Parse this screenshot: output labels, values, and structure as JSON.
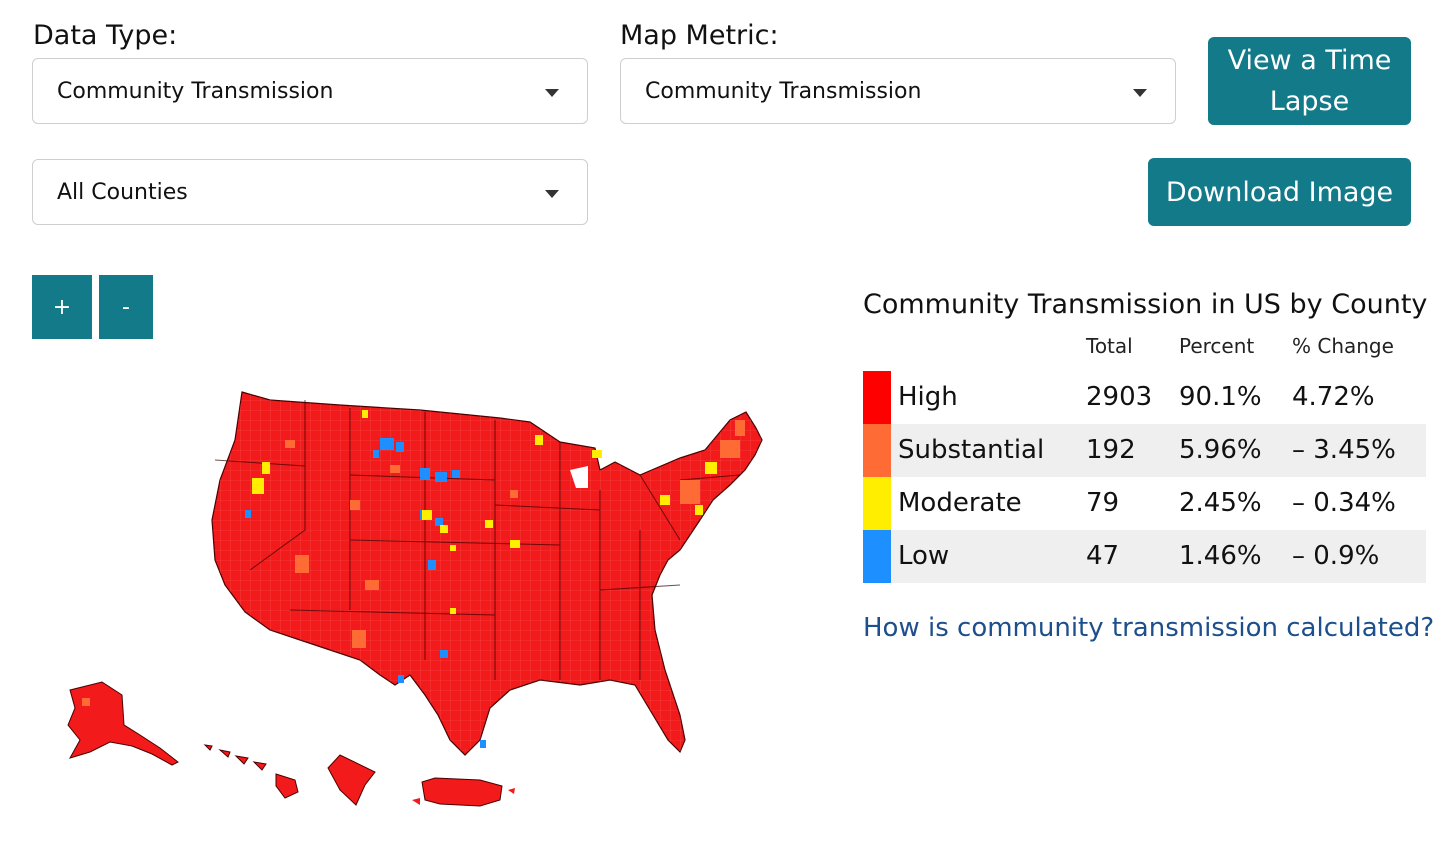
{
  "controls": {
    "data_type_label": "Data Type:",
    "data_type_value": "Community Transmission",
    "map_metric_label": "Map Metric:",
    "map_metric_value": "Community Transmission",
    "county_filter_value": "All Counties",
    "time_lapse_button": "View a Time Lapse",
    "time_lapse_line1": "View a Time",
    "time_lapse_line2": "Lapse",
    "download_button": "Download Image"
  },
  "zoom": {
    "in_label": "+",
    "out_label": "-"
  },
  "legend": {
    "title": "Community Transmission in US by County",
    "headers": {
      "total": "Total",
      "percent": "Percent",
      "change": "% Change"
    },
    "rows": [
      {
        "level": "High",
        "total": "2903",
        "percent": "90.1%",
        "change": "4.72%",
        "color": "#ff0000"
      },
      {
        "level": "Substantial",
        "total": "192",
        "percent": "5.96%",
        "change": "– 3.45%",
        "color": "#ff6b35"
      },
      {
        "level": "Moderate",
        "total": "79",
        "percent": "2.45%",
        "change": "– 0.34%",
        "color": "#ffee00"
      },
      {
        "level": "Low",
        "total": "47",
        "percent": "1.46%",
        "change": "– 0.9%",
        "color": "#1e8fff"
      }
    ]
  },
  "help_link": "How is community transmission calculated?",
  "map": {
    "fill_color": "#f21a1a",
    "border_color": "#4a0000",
    "region_names": [
      "contiguous-us",
      "alaska",
      "hawaii",
      "guam",
      "puerto-rico"
    ]
  }
}
